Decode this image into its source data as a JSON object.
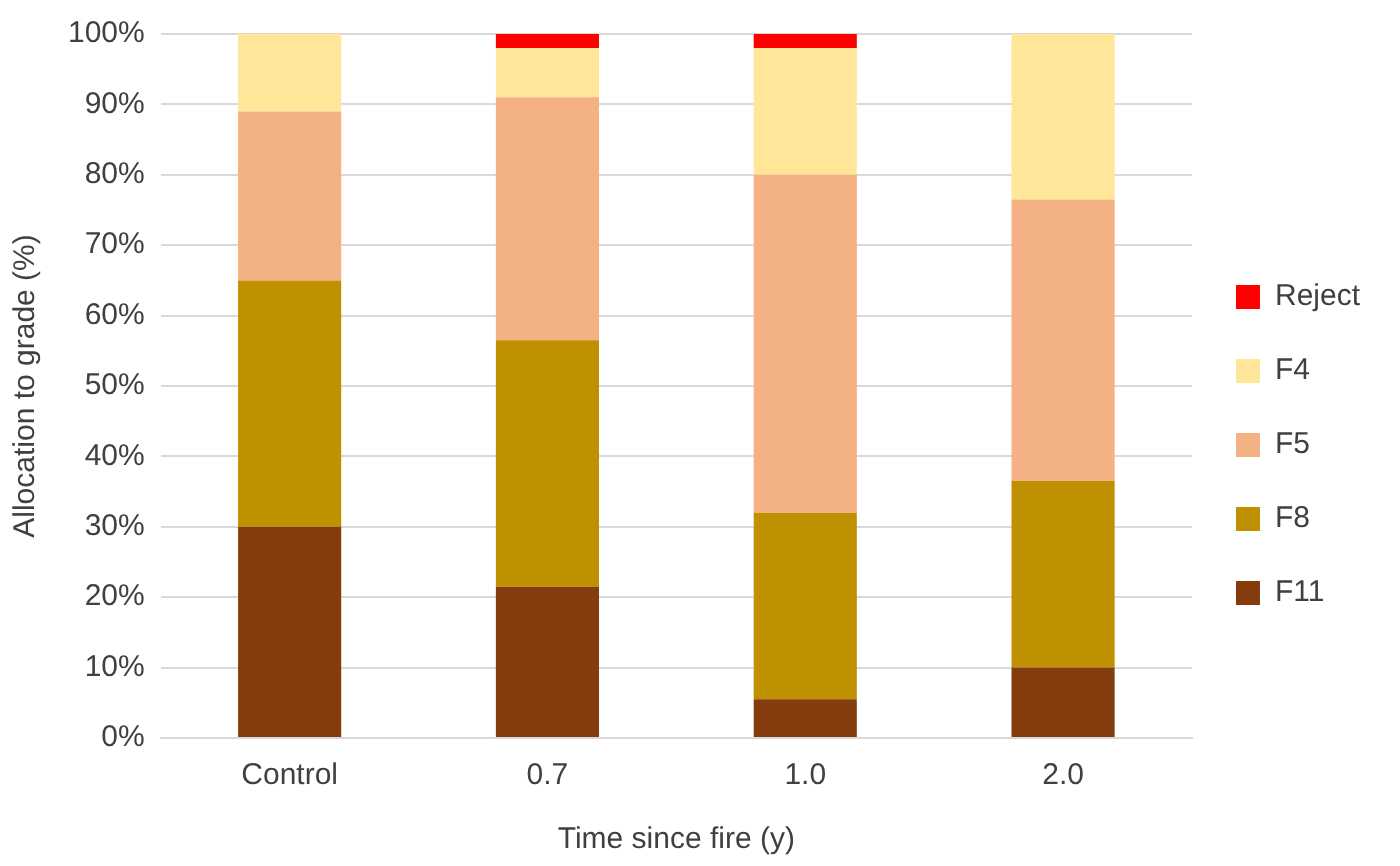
{
  "chart_data": {
    "type": "bar",
    "stacked": true,
    "xlabel": "Time since fire (y)",
    "ylabel": "Allocation to grade (%)",
    "categories": [
      "Control",
      "0.7",
      "1.0",
      "2.0"
    ],
    "series": [
      {
        "name": "F11",
        "color": "#843c0c",
        "values": [
          30,
          21.5,
          5.5,
          10
        ]
      },
      {
        "name": "F8",
        "color": "#bf9000",
        "values": [
          35,
          35,
          26.5,
          26.5
        ]
      },
      {
        "name": "F5",
        "color": "#f4b183",
        "values": [
          24,
          34.5,
          48,
          40
        ]
      },
      {
        "name": "F4",
        "color": "#ffe699",
        "values": [
          11,
          7,
          18,
          23.5
        ]
      },
      {
        "name": "Reject",
        "color": "#ff0000",
        "values": [
          0,
          2,
          2,
          0
        ]
      }
    ],
    "ylim": [
      0,
      100
    ],
    "yticks": [
      {
        "value": 0,
        "label": "0%"
      },
      {
        "value": 10,
        "label": "10%"
      },
      {
        "value": 20,
        "label": "20%"
      },
      {
        "value": 30,
        "label": "30%"
      },
      {
        "value": 40,
        "label": "40%"
      },
      {
        "value": 50,
        "label": "50%"
      },
      {
        "value": 60,
        "label": "60%"
      },
      {
        "value": 70,
        "label": "70%"
      },
      {
        "value": 80,
        "label": "80%"
      },
      {
        "value": 90,
        "label": "90%"
      },
      {
        "value": 100,
        "label": "100%"
      }
    ],
    "grid": "y",
    "legend": "right"
  }
}
